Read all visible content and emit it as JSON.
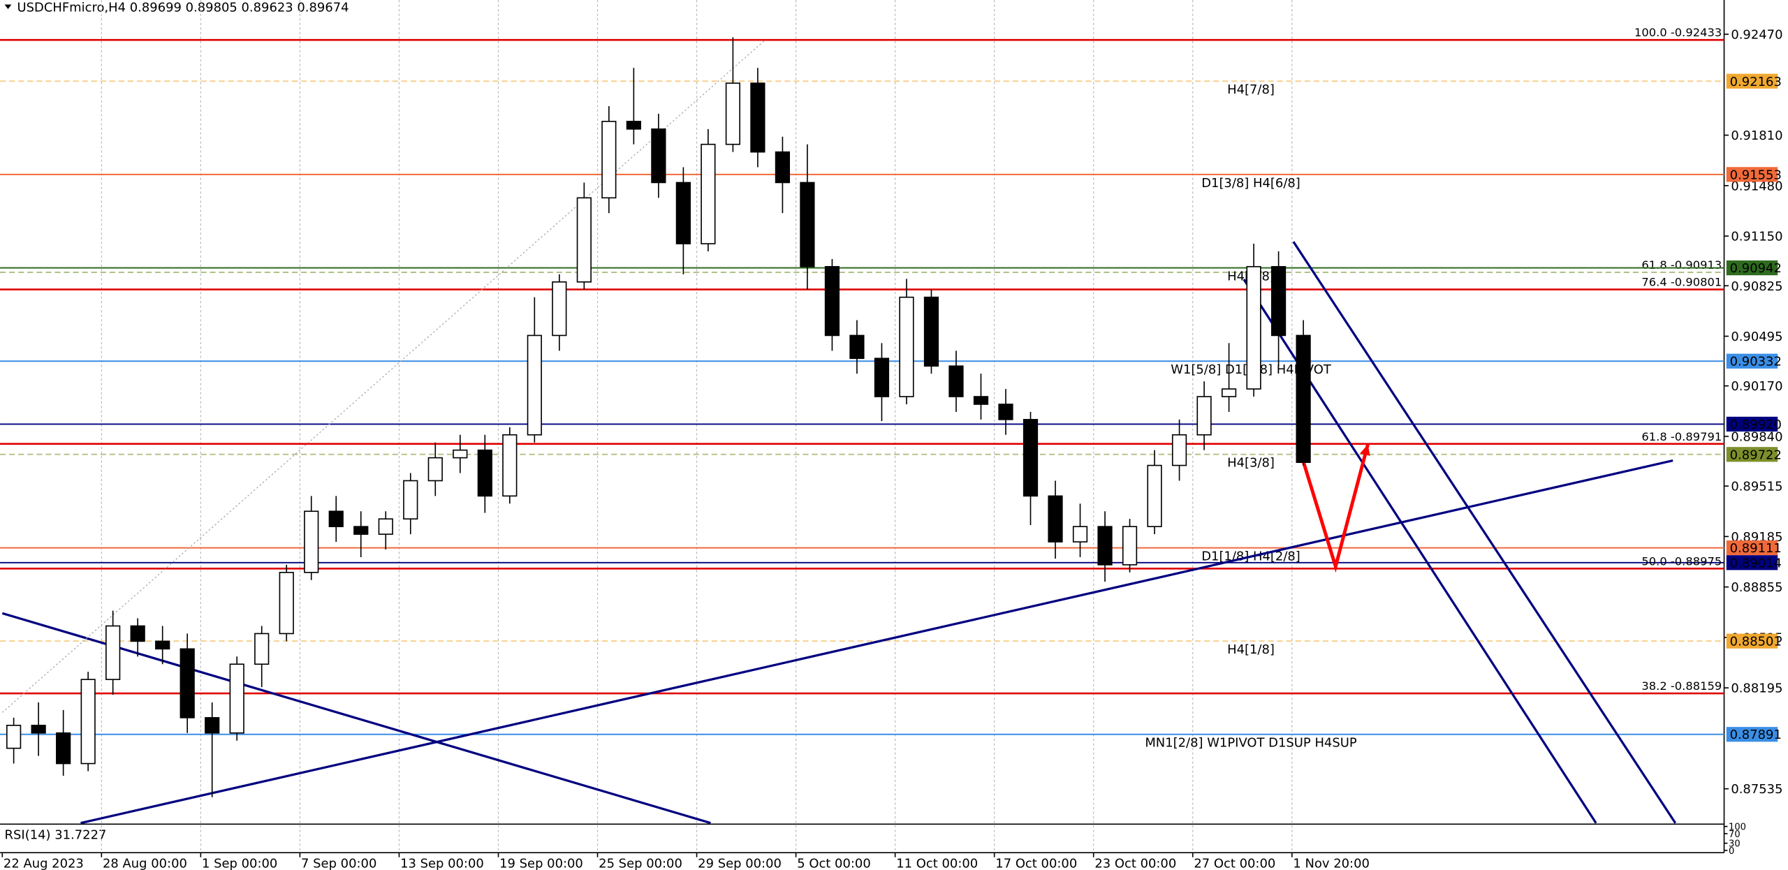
{
  "chart_data": {
    "type": "candlestick",
    "title": "USDCHFmicro,H4 0.89699 0.89805 0.89623 0.89674",
    "categories": [
      "22 Aug 2023",
      null,
      null,
      null,
      "28 Aug 00:00",
      null,
      null,
      null,
      "1 Sep 00:00",
      null,
      null,
      null,
      "7 Sep 00:00",
      null,
      null,
      null,
      "13 Sep 00:00",
      null,
      null,
      null,
      "19 Sep 00:00",
      null,
      null,
      null,
      "25 Sep 00:00",
      null,
      null,
      null,
      "29 Sep 00:00",
      null,
      null,
      null,
      "5 Oct 00:00",
      null,
      null,
      null,
      "11 Oct 00:00",
      null,
      null,
      null,
      "17 Oct 00:00",
      null,
      null,
      null,
      "23 Oct 00:00",
      null,
      null,
      null,
      "27 Oct 00:00",
      null,
      null,
      null,
      "1 Nov 20:00"
    ],
    "open": [
      0.878,
      0.8795,
      0.879,
      0.877,
      0.8825,
      0.886,
      0.885,
      0.8845,
      0.88,
      0.879,
      0.8835,
      0.8855,
      0.8895,
      0.8935,
      0.8925,
      0.892,
      0.893,
      0.8955,
      0.897,
      0.8975,
      0.8945,
      0.8985,
      0.905,
      0.9085,
      0.914,
      0.919,
      0.9185,
      0.915,
      0.911,
      0.9175,
      0.9215,
      0.917,
      0.915,
      0.9095,
      0.905,
      0.9035,
      0.901,
      0.9075,
      0.903,
      0.901,
      0.9005,
      0.8995,
      0.8945,
      0.8915,
      0.8925,
      0.89,
      0.8925,
      0.8965,
      0.8985,
      0.901,
      0.9015,
      0.9095,
      0.905
    ],
    "high": [
      0.88,
      0.881,
      0.8805,
      0.883,
      0.887,
      0.8865,
      0.886,
      0.8855,
      0.881,
      0.884,
      0.886,
      0.89,
      0.8945,
      0.8945,
      0.8935,
      0.8935,
      0.896,
      0.898,
      0.8985,
      0.8985,
      0.899,
      0.9075,
      0.909,
      0.915,
      0.92,
      0.9225,
      0.9195,
      0.916,
      0.9185,
      0.9245,
      0.9225,
      0.918,
      0.9175,
      0.91,
      0.906,
      0.9045,
      0.9087,
      0.908,
      0.904,
      0.9025,
      0.9015,
      0.9,
      0.8955,
      0.894,
      0.8935,
      0.893,
      0.8975,
      0.8995,
      0.902,
      0.9045,
      0.911,
      0.9105,
      0.906
    ],
    "low": [
      0.877,
      0.8775,
      0.8762,
      0.8765,
      0.8815,
      0.884,
      0.8835,
      0.879,
      0.8748,
      0.8785,
      0.882,
      0.885,
      0.889,
      0.8915,
      0.8905,
      0.891,
      0.892,
      0.8945,
      0.896,
      0.8934,
      0.894,
      0.898,
      0.904,
      0.908,
      0.913,
      0.9175,
      0.914,
      0.909,
      0.9105,
      0.917,
      0.916,
      0.913,
      0.908,
      0.904,
      0.9025,
      0.8994,
      0.9005,
      0.9025,
      0.9,
      0.8995,
      0.8985,
      0.8926,
      0.8904,
      0.8905,
      0.8889,
      0.8895,
      0.892,
      0.8955,
      0.8975,
      0.9,
      0.901,
      0.903,
      0.8965
    ],
    "close": [
      0.8795,
      0.879,
      0.877,
      0.8825,
      0.886,
      0.885,
      0.8845,
      0.88,
      0.879,
      0.8835,
      0.8855,
      0.8895,
      0.8935,
      0.8925,
      0.892,
      0.893,
      0.8955,
      0.897,
      0.8975,
      0.8945,
      0.8985,
      0.905,
      0.9085,
      0.914,
      0.919,
      0.9185,
      0.915,
      0.911,
      0.9175,
      0.9215,
      0.917,
      0.915,
      0.9095,
      0.905,
      0.9035,
      0.901,
      0.9075,
      0.903,
      0.901,
      0.9005,
      0.8995,
      0.8945,
      0.8915,
      0.8925,
      0.89,
      0.8925,
      0.8965,
      0.8985,
      0.901,
      0.9015,
      0.9095,
      0.905,
      0.8967
    ],
    "ylim": [
      0.87311,
      0.92694
    ],
    "yticks": [
      {
        "value": 0.9247,
        "label": "0.92470"
      },
      {
        "value": 0.9181,
        "label": "0.91810"
      },
      {
        "value": 0.9148,
        "label": "0.91480"
      },
      {
        "value": 0.9115,
        "label": "0.91150"
      },
      {
        "value": 0.90825,
        "label": "0.90825"
      },
      {
        "value": 0.90495,
        "label": "0.90495"
      },
      {
        "value": 0.9017,
        "label": "0.90170"
      },
      {
        "value": 0.8984,
        "label": "0.89840"
      },
      {
        "value": 0.89515,
        "label": "0.89515"
      },
      {
        "value": 0.89185,
        "label": "0.89185"
      },
      {
        "value": 0.88855,
        "label": "0.88855"
      },
      {
        "value": 0.88525,
        "label": "0.88525"
      },
      {
        "value": 0.88195,
        "label": "0.88195"
      },
      {
        "value": 0.87535,
        "label": "0.87535"
      }
    ],
    "grid": true,
    "up_color": "#ffffff",
    "down_color": "#000000",
    "levels": [
      {
        "value": 0.92433,
        "label": "100.0 -0.92433",
        "color": "#e00000",
        "dash": false
      },
      {
        "value": 0.92163,
        "label": "H4[7/8]",
        "price_label": "0.92163",
        "color": "#f0a830",
        "dash": true
      },
      {
        "value": 0.91553,
        "label": "D1[3/8] H4[6/8]",
        "price_label": "0.91553",
        "color": "#f06a3a",
        "dash": false
      },
      {
        "value": 0.90913,
        "label": "61.8 -0.90913",
        "color": "#6b8e23",
        "dash": true
      },
      {
        "value": 0.90942,
        "label": "H4[5/8]",
        "price_label": "0.90942",
        "color": "#2e6b1f",
        "dash": false
      },
      {
        "value": 0.90801,
        "label": "76.4 -0.90801",
        "color": "#e00000",
        "dash": false
      },
      {
        "value": 0.90332,
        "label": "W1[5/8] D1[2/8] H4PIVOT",
        "price_label": "0.90332",
        "color": "#3a8ee6",
        "dash": false
      },
      {
        "value": 0.8992,
        "price_label": "0.89920",
        "color": "#000080",
        "dash": false
      },
      {
        "value": 0.89791,
        "label": "61.8 -0.89791",
        "color": "#e00000",
        "dash": false
      },
      {
        "value": 0.89722,
        "label": "H4[3/8]",
        "price_label": "0.89722",
        "color": "#7d8f2a",
        "dash": true
      },
      {
        "value": 0.89111,
        "label": "D1[1/8] H4[2/8]",
        "price_label": "0.89111",
        "color": "#f06a3a",
        "dash": false
      },
      {
        "value": 0.89014,
        "price_label": "0.89014",
        "color": "#000080",
        "dash": false
      },
      {
        "value": 0.88975,
        "label": "50.0 -0.88975",
        "color": "#e00000",
        "dash": false
      },
      {
        "value": 0.88501,
        "label": "H4[1/8]",
        "price_label": "0.88501",
        "color": "#f0a830",
        "dash": true
      },
      {
        "value": 0.88159,
        "label": "38.2 -0.88159",
        "color": "#e00000",
        "dash": false
      },
      {
        "value": 0.87891,
        "label": "MN1[2/8] W1PIVOT D1SUP H4SUP",
        "price_label": "0.87891",
        "color": "#3a8ee6",
        "dash": false
      }
    ],
    "trendlines": [
      {
        "x": [
          2.7,
          66.9
        ],
        "y": [
          0.87311,
          0.89682
        ],
        "color": "#000080"
      },
      {
        "x": [
          -0.46,
          28.1
        ],
        "y": [
          0.88683,
          0.87311
        ],
        "color": "#000080"
      },
      {
        "x": [
          49.6,
          63.8
        ],
        "y": [
          0.90867,
          0.87311
        ],
        "color": "#000080"
      },
      {
        "x": [
          51.6,
          67.0
        ],
        "y": [
          0.91113,
          0.87311
        ],
        "color": "#000080"
      },
      {
        "x": [
          -0.46,
          30.3
        ],
        "y": [
          0.88034,
          0.92433
        ],
        "color": "#aaaaaa",
        "dotted": true
      }
    ],
    "arrow": {
      "x": [
        52,
        53.3,
        54.6
      ],
      "y": [
        0.89675,
        0.88989,
        0.89787
      ],
      "color": "#ff0000"
    },
    "rsi_label": "RSI(14) 31.7227",
    "rsi_ticks": [
      100,
      70,
      30,
      0
    ]
  }
}
